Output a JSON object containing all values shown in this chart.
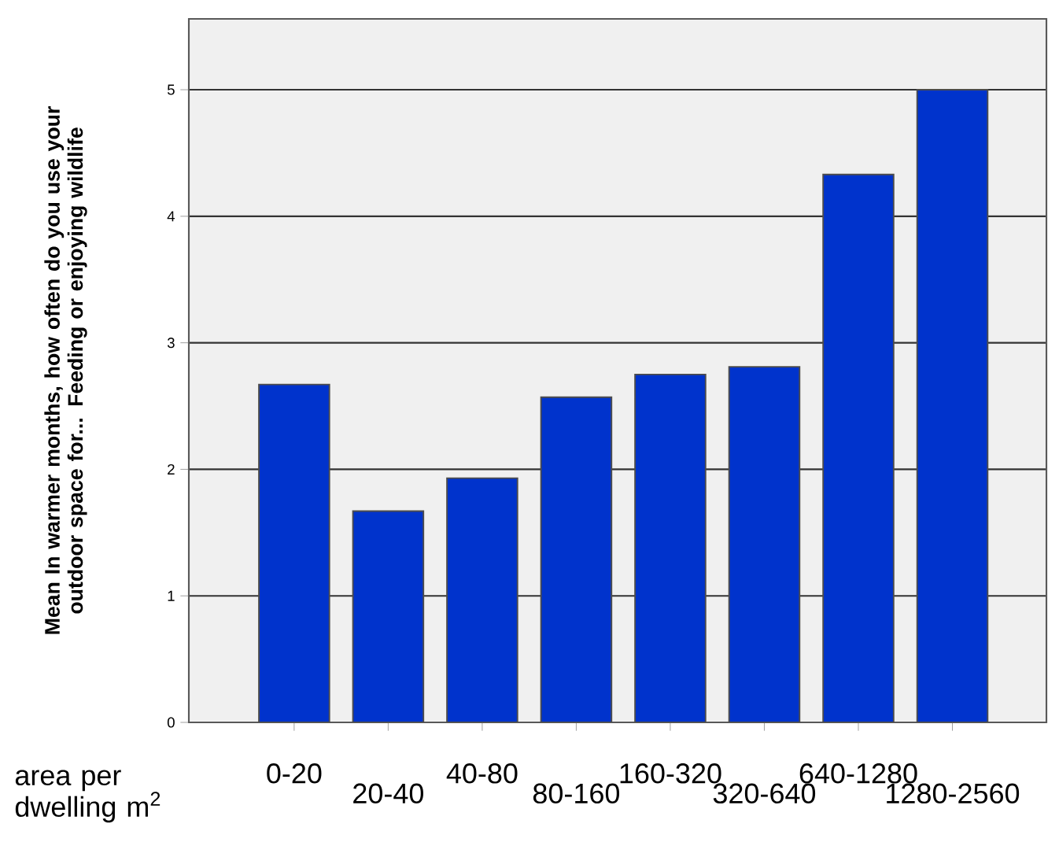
{
  "chart_data": {
    "type": "bar",
    "ylabel": "Mean In warmer months, how often do you use your outdoor space for... Feeding or enjoying wildlife",
    "xlabel": "area per dwelling m$^{2}$",
    "categories": [
      "0-20",
      "20-40",
      "40-80",
      "80-160",
      "160-320",
      "320-640",
      "640-1280",
      "1280-2560"
    ],
    "values": [
      2.67,
      1.67,
      1.93,
      2.57,
      2.75,
      2.81,
      4.33,
      5.0
    ],
    "color": "#0033cc",
    "ylim": [
      0,
      5.56
    ],
    "yticks": [
      0,
      1,
      2,
      3,
      4,
      5
    ],
    "grid": "y"
  }
}
